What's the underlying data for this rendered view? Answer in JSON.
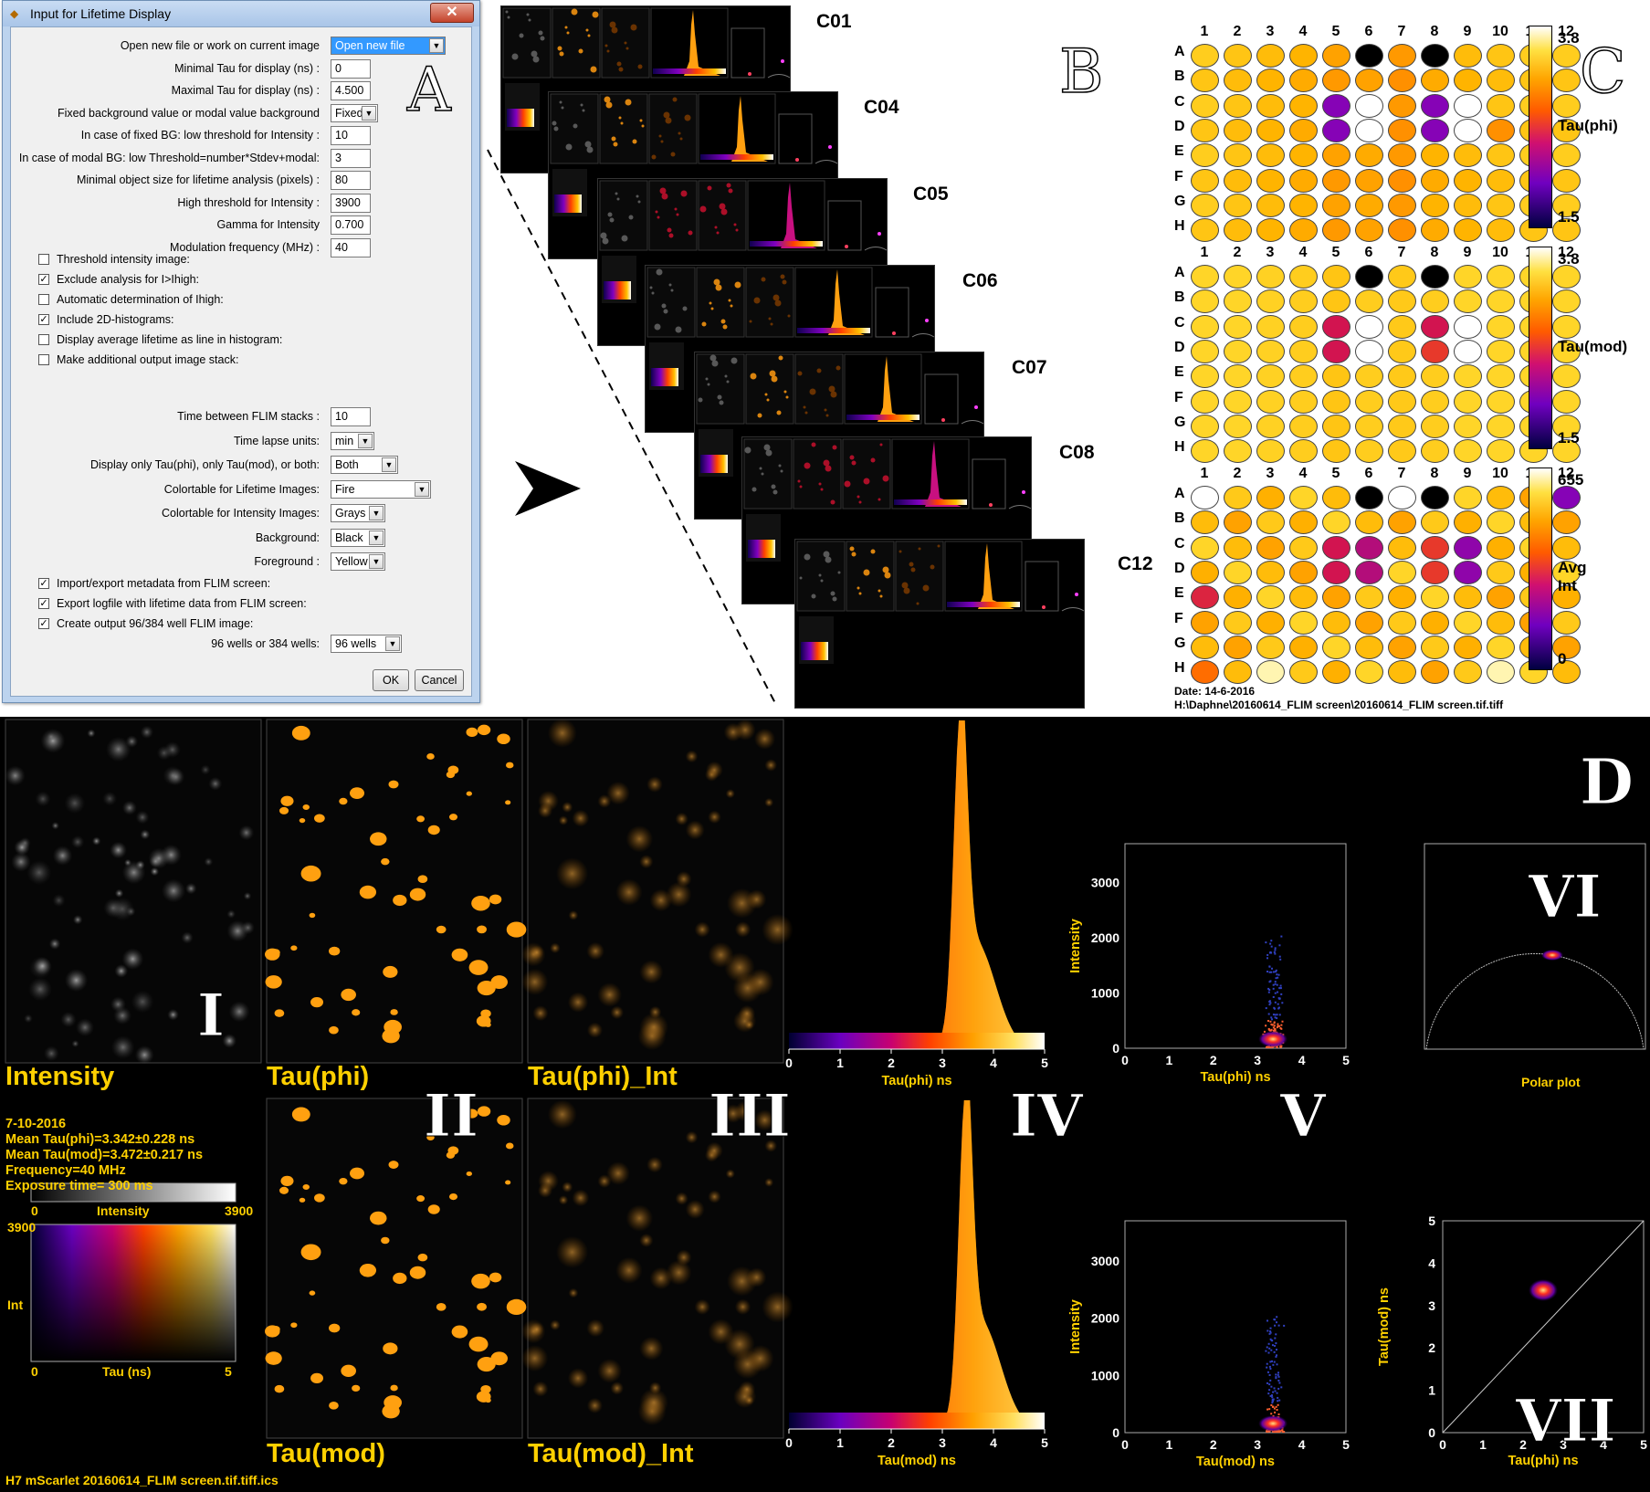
{
  "panel_letters": {
    "A": "A",
    "B": "B",
    "C": "C",
    "D": "D"
  },
  "dialog": {
    "title": "Input for Lifetime Display",
    "close_glyph": "✕",
    "rows": [
      {
        "label": "Open new file or work on current image",
        "type": "select",
        "value": "Open new file",
        "highlight": true
      },
      {
        "label": "Minimal Tau for display (ns) :",
        "type": "text",
        "value": "0"
      },
      {
        "label": "Maximal Tau for display (ns) :",
        "type": "text",
        "value": "4.500"
      },
      {
        "label": "Fixed background value or modal value background",
        "type": "select",
        "value": "Fixed"
      },
      {
        "label": "In case of fixed BG: low threshold for Intensity :",
        "type": "text",
        "value": "10"
      },
      {
        "label": "In case of modal BG: low Threshold=number*Stdev+modal:",
        "type": "text",
        "value": "3"
      },
      {
        "label": "Minimal object size for lifetime analysis (pixels) :",
        "type": "text",
        "value": "80"
      },
      {
        "label": "High threshold for Intensity :",
        "type": "text",
        "value": "3900"
      },
      {
        "label": "Gamma for Intensity",
        "type": "text",
        "value": "0.700"
      },
      {
        "label": "Modulation frequency (MHz) :",
        "type": "text",
        "value": "40"
      }
    ],
    "checks1": [
      {
        "label": "Threshold intensity image:",
        "checked": false
      },
      {
        "label": "Exclude analysis for I>Ihigh:",
        "checked": true
      },
      {
        "label": "Automatic determination of Ihigh:",
        "checked": false
      },
      {
        "label": "Include 2D-histograms:",
        "checked": true
      },
      {
        "label": "Display average lifetime as line in histogram:",
        "checked": false
      },
      {
        "label": "Make additional output image stack:",
        "checked": false
      }
    ],
    "rows2": [
      {
        "label": "Time between FLIM stacks :",
        "type": "text",
        "value": "10"
      },
      {
        "label": "Time lapse units:",
        "type": "select",
        "value": "min"
      },
      {
        "label": "Display only Tau(phi), only Tau(mod), or both:",
        "type": "select",
        "value": "Both"
      },
      {
        "label": "Colortable for Lifetime Images:",
        "type": "select",
        "value": "Fire"
      },
      {
        "label": "Colortable for Intensity Images:",
        "type": "select",
        "value": "Grays"
      },
      {
        "label": "Background:",
        "type": "select",
        "value": "Black"
      },
      {
        "label": "Foreground :",
        "type": "select",
        "value": "Yellow"
      }
    ],
    "checks2": [
      {
        "label": "Import/export metadata from FLIM screen:",
        "checked": true
      },
      {
        "label": "Export logfile with lifetime data from FLIM screen:",
        "checked": true
      },
      {
        "label": "Create output 96/384 well FLIM image:",
        "checked": true
      }
    ],
    "wells_row": {
      "label": "96 wells or 384 wells:",
      "value": "96 wells"
    },
    "ok_label": "OK",
    "cancel_label": "Cancel",
    "check_glyph": "✓",
    "arrow_glyph": "▼"
  },
  "stack_labels": [
    "C01",
    "C04",
    "C05",
    "C06",
    "C07",
    "C08",
    "C12"
  ],
  "plates": {
    "cols": [
      "1",
      "2",
      "3",
      "4",
      "5",
      "6",
      "7",
      "8",
      "9",
      "10",
      "11",
      "12"
    ],
    "rows": [
      "A",
      "B",
      "C",
      "D",
      "E",
      "F",
      "G",
      "H"
    ],
    "plate1": {
      "cbar_max": "3.8",
      "cbar_min": "1.5",
      "cbar_label": "Tau(phi)"
    },
    "plate2": {
      "cbar_max": "3.8",
      "cbar_min": "1.5",
      "cbar_label": "Tau(mod)"
    },
    "plate3": {
      "cbar_max": "655",
      "cbar_min": "0",
      "cbar_label": "Avg Int"
    },
    "date": "Date: 14-6-2016",
    "path": "H:\\Daphne\\20160614_FLIM screen\\20160614_FLIM screen.tif.tiff"
  },
  "panelD": {
    "labels": {
      "intensity": "Intensity",
      "tauphi": "Tau(phi)",
      "tauphi_int": "Tau(phi)_Int",
      "taumod": "Tau(mod)",
      "taumod_int": "Tau(mod)_Int",
      "polar": "Polar plot"
    },
    "roman": {
      "I": "I",
      "II": "II",
      "III": "III",
      "IV": "IV",
      "V": "V",
      "VI": "VI",
      "VII": "VII"
    },
    "info": {
      "date": "7-10-2016",
      "mean_phi": "Mean Tau(phi)=3.342±0.228 ns",
      "mean_mod": "Mean Tau(mod)=3.472±0.217 ns",
      "freq": "Frequency=40 MHz",
      "exposure": "Exposure time= 300 ms"
    },
    "intensity_bar": {
      "min": "0",
      "label": "Intensity",
      "max": "3900"
    },
    "lut2d": {
      "top": "3900",
      "ylabel": "Int",
      "min": "0",
      "xlabel": "Tau (ns)",
      "max": "5"
    },
    "footer": "H7  mScarlet 20160614_FLIM screen.tif.tiff.ics",
    "hist_xlabel_phi": "Tau(phi) ns",
    "hist_xlabel_mod": "Tau(mod) ns",
    "scatter_ylabel": "Intensity",
    "scatter_xlabel_phi": "Tau(phi) ns",
    "scatter_xlabel_mod": "Tau(mod) ns",
    "corr_ylabel": "Tau(mod) ns",
    "corr_xlabel": "Tau(phi) ns",
    "axis_x_ticks": [
      "0",
      "1",
      "2",
      "3",
      "4",
      "5"
    ],
    "scatter_y_ticks": [
      "0",
      "1000",
      "2000",
      "3000"
    ],
    "corr_y_ticks": [
      "0",
      "1",
      "2",
      "3",
      "4",
      "5"
    ]
  },
  "colors": {
    "label_yellow": "#ffd000",
    "fire_orange": "#ffa020"
  }
}
